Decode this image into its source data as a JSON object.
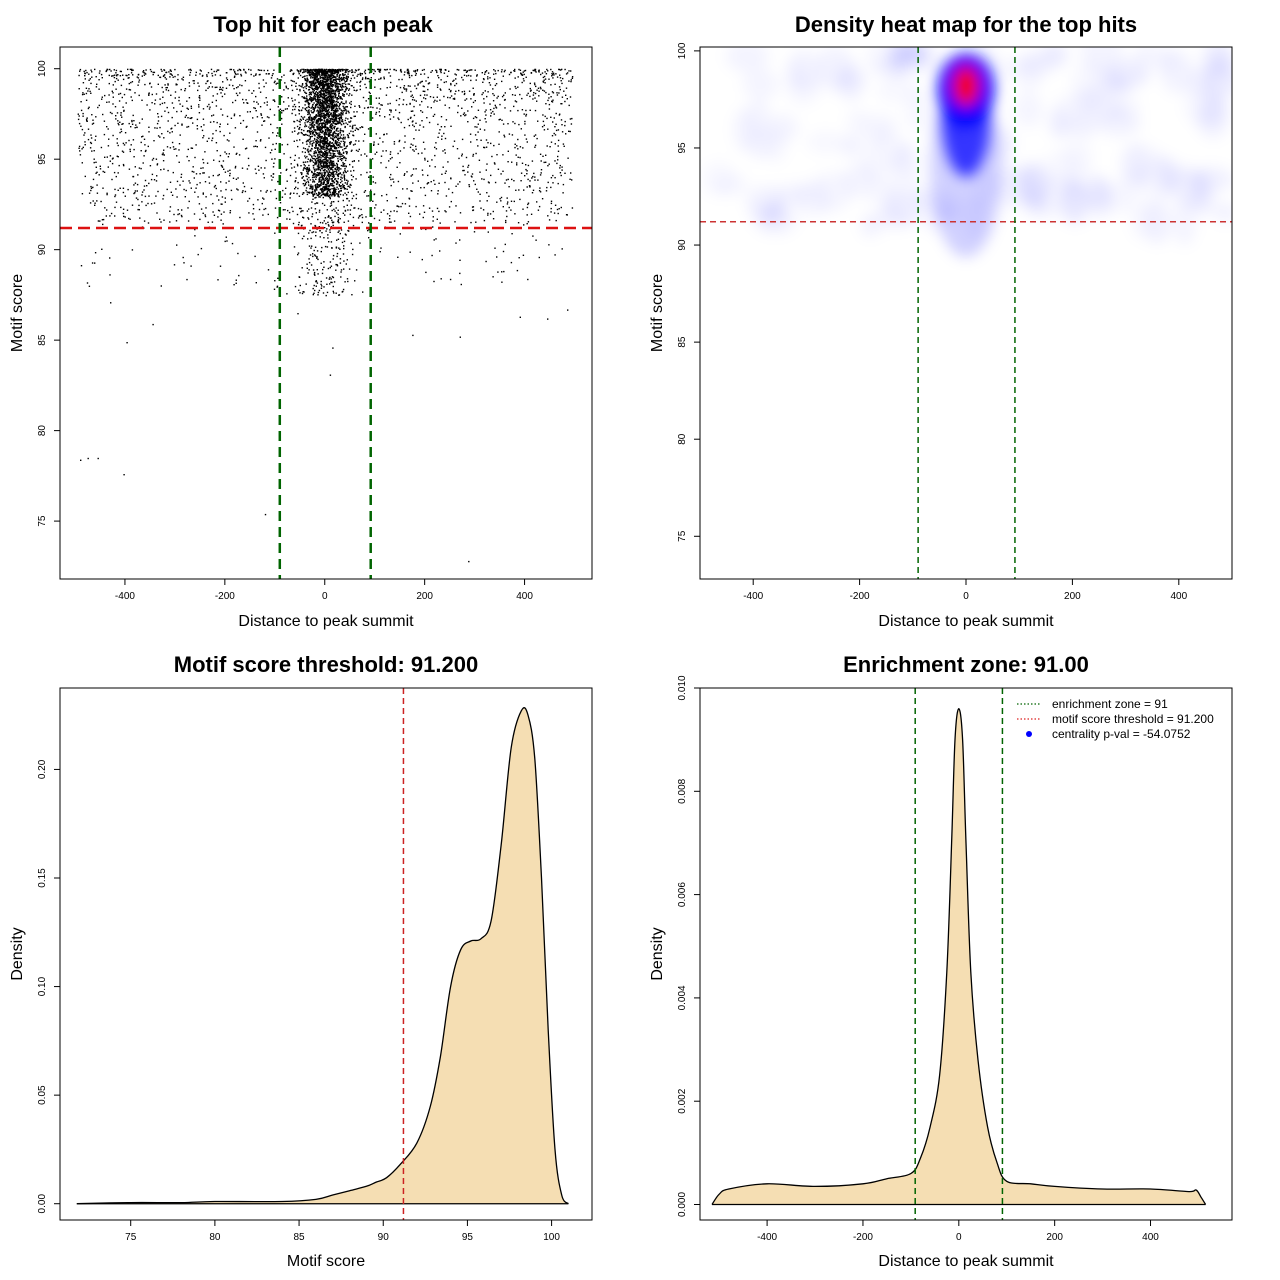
{
  "chart_data": [
    {
      "id": "scatter",
      "type": "scatter",
      "title": "Top hit for each peak",
      "xlabel": "Distance to peak summit",
      "ylabel": "Motif score",
      "xlim": [
        -530,
        535
      ],
      "ylim": [
        71.8,
        101.2
      ],
      "xticks": [
        -400,
        -200,
        0,
        200,
        400
      ],
      "yticks": [
        75,
        80,
        85,
        90,
        95,
        100
      ],
      "threshold_y": 91.2,
      "zone_x": [
        -90,
        92
      ],
      "center_cluster": {
        "x_mean": 0,
        "x_sd": 22,
        "y_range": [
          93,
          100
        ]
      },
      "outliers": [
        {
          "x": -490,
          "y": 78.4
        },
        {
          "x": -475,
          "y": 78.5
        },
        {
          "x": -455,
          "y": 78.5
        },
        {
          "x": -403,
          "y": 77.6
        },
        {
          "x": -120,
          "y": 75.4
        },
        {
          "x": 287,
          "y": 72.8
        },
        {
          "x": -397,
          "y": 84.9
        },
        {
          "x": -345,
          "y": 85.9
        },
        {
          "x": 390,
          "y": 86.3
        },
        {
          "x": 445,
          "y": 86.2
        },
        {
          "x": 485,
          "y": 86.7
        },
        {
          "x": 10,
          "y": 83.1
        },
        {
          "x": 15,
          "y": 84.6
        },
        {
          "x": -430,
          "y": 87.1
        },
        {
          "x": -55,
          "y": 86.5
        },
        {
          "x": 270,
          "y": 85.2
        },
        {
          "x": 175,
          "y": 85.3
        },
        {
          "x": -60,
          "y": 88.0
        }
      ],
      "colors": {
        "points": "#000000",
        "threshold": "#dd1111",
        "zone": "#006400"
      }
    },
    {
      "id": "heatmap",
      "type": "heatmap",
      "title": "Density heat map for the top hits",
      "xlabel": "Distance to peak summit",
      "ylabel": "Motif score",
      "xlim": [
        -500,
        500
      ],
      "ylim": [
        72.8,
        100.2
      ],
      "xticks": [
        -400,
        -200,
        0,
        200,
        400
      ],
      "yticks": [
        75,
        80,
        85,
        90,
        95,
        100
      ],
      "threshold_y": 91.2,
      "zone_x": [
        -90,
        92
      ],
      "hotspot": {
        "x": 0,
        "y": 98.2
      },
      "colors": {
        "low": "#ffffff",
        "mid": "#0000ff",
        "high": "#ff0000",
        "threshold": "#cc3333",
        "zone": "#006400"
      }
    },
    {
      "id": "score_density",
      "type": "area",
      "title": "Motif score threshold: 91.200",
      "xlabel": "Motif score",
      "ylabel": "Density",
      "xlim": [
        70.8,
        102.4
      ],
      "ylim": [
        -0.0075,
        0.2375
      ],
      "xticks": [
        75,
        80,
        85,
        90,
        95,
        100
      ],
      "yticks": [
        0.0,
        0.05,
        0.1,
        0.15,
        0.2
      ],
      "ytick_labels": [
        "0.00",
        "0.05",
        "0.10",
        "0.15",
        "0.20"
      ],
      "threshold_x": 91.2,
      "x": [
        71.8,
        75,
        78,
        80,
        84,
        86,
        87,
        88,
        89,
        89.6,
        90.2,
        91,
        92,
        92.8,
        93.4,
        94,
        94.6,
        95.2,
        95.8,
        96.4,
        97,
        97.6,
        98.2,
        98.6,
        99,
        99.4,
        99.8,
        100.2,
        100.6,
        101
      ],
      "y": [
        0.0,
        0.0005,
        0.0005,
        0.001,
        0.001,
        0.002,
        0.004,
        0.006,
        0.008,
        0.01,
        0.012,
        0.018,
        0.028,
        0.045,
        0.068,
        0.1,
        0.117,
        0.121,
        0.122,
        0.13,
        0.165,
        0.21,
        0.227,
        0.225,
        0.205,
        0.15,
        0.08,
        0.025,
        0.004,
        0.0
      ],
      "colors": {
        "fill": "#f5deb3",
        "line": "#000000",
        "threshold": "#cc2222"
      }
    },
    {
      "id": "distance_density",
      "type": "area",
      "title": "Enrichment zone: 91.00",
      "xlabel": "Distance to peak summit",
      "ylabel": "Density",
      "xlim": [
        -540,
        570
      ],
      "ylim": [
        -0.0003,
        0.01
      ],
      "xticks": [
        -400,
        -200,
        0,
        200,
        400
      ],
      "yticks": [
        0.0,
        0.002,
        0.004,
        0.006,
        0.008,
        0.01
      ],
      "ytick_labels": [
        "0.000",
        "0.002",
        "0.004",
        "0.006",
        "0.008",
        "0.010"
      ],
      "zone_x": [
        -91,
        91
      ],
      "x": [
        -515,
        -500,
        -480,
        -400,
        -300,
        -200,
        -150,
        -100,
        -80,
        -60,
        -40,
        -25,
        -15,
        -8,
        0,
        8,
        15,
        25,
        40,
        60,
        80,
        100,
        150,
        200,
        300,
        400,
        480,
        495,
        505,
        515
      ],
      "y": [
        0.0,
        0.0002,
        0.0003,
        0.0004,
        0.00035,
        0.0004,
        0.0005,
        0.0006,
        0.0009,
        0.0015,
        0.0025,
        0.0045,
        0.007,
        0.009,
        0.0096,
        0.009,
        0.007,
        0.0045,
        0.0028,
        0.0015,
        0.0008,
        0.00045,
        0.0004,
        0.00035,
        0.0003,
        0.0003,
        0.00025,
        0.00028,
        0.00015,
        0.0
      ],
      "legend": [
        {
          "label": "enrichment zone = 91",
          "color": "#006400",
          "style": "dotted-line"
        },
        {
          "label": "motif score threshold = 91.200",
          "color": "#dd2222",
          "style": "dotted-line"
        },
        {
          "label": "centrality p-val = -54.0752",
          "color": "#0000ff",
          "style": "point"
        }
      ],
      "colors": {
        "fill": "#f5deb3",
        "line": "#000000",
        "zone": "#006400"
      }
    }
  ]
}
